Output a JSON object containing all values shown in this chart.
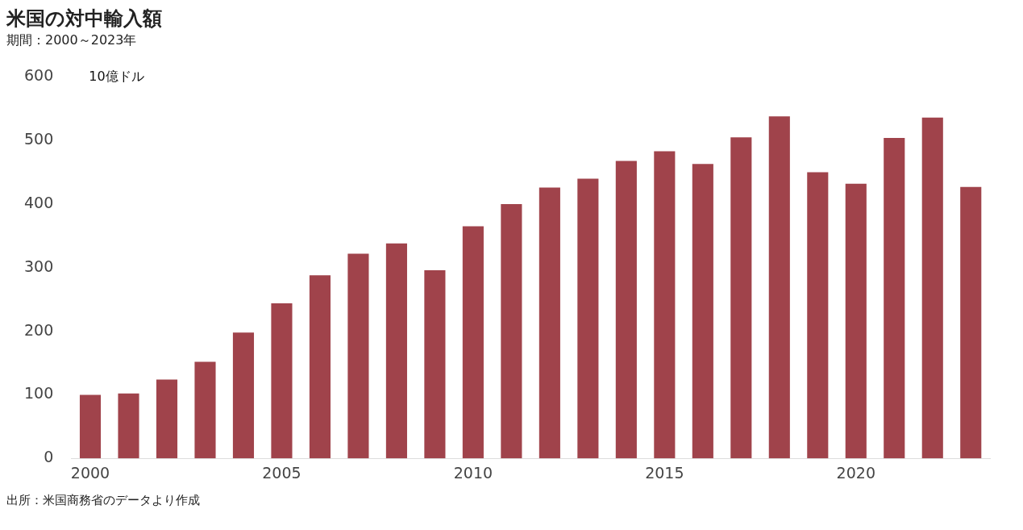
{
  "chart_data": {
    "type": "bar",
    "title": "米国の対中輸入額",
    "subtitle": "期間：2000～2023年",
    "ylabel": "10億ドル",
    "annotations": [
      "出所：米国商務省のデータより作成"
    ],
    "categories": [
      "2000",
      null,
      null,
      null,
      null,
      "2005",
      null,
      null,
      null,
      null,
      "2010",
      null,
      null,
      null,
      null,
      "2015",
      null,
      null,
      null,
      null,
      "2020",
      null,
      null,
      null
    ],
    "values": [
      100,
      102,
      124,
      152,
      198,
      244,
      288,
      322,
      338,
      296,
      365,
      400,
      426,
      440,
      468,
      483,
      463,
      505,
      538,
      450,
      432,
      504,
      536,
      427
    ],
    "color": "#a0434b",
    "ylim": [
      0,
      600
    ],
    "yticks": [
      0,
      100,
      200,
      300,
      400,
      500,
      600
    ],
    "grid": false,
    "legend": false
  }
}
